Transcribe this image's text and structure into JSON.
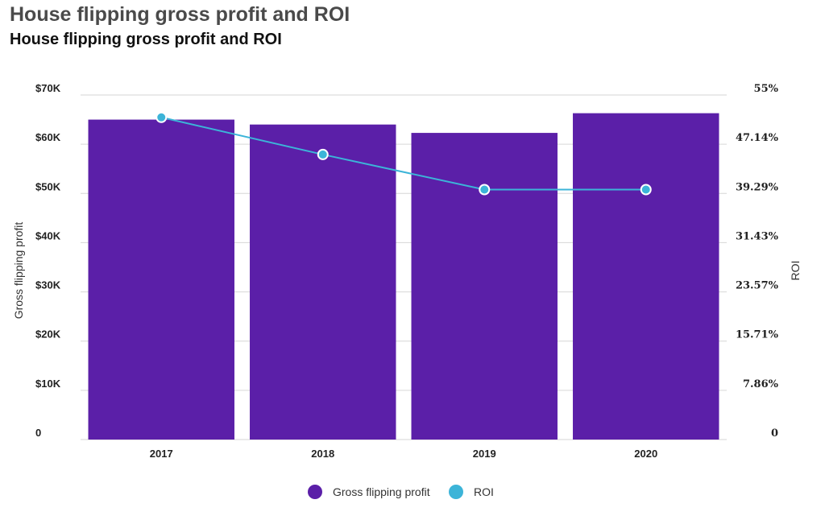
{
  "header": {
    "title": "House flipping gross profit and ROI",
    "subtitle": "House flipping gross profit and ROI"
  },
  "colors": {
    "bar": "#5b1fa8",
    "line": "#3cb4d8",
    "grid": "#d6d6d6"
  },
  "chart_data": {
    "type": "bar",
    "categories": [
      "2017",
      "2018",
      "2019",
      "2020"
    ],
    "series": [
      {
        "name": "Gross flipping profit",
        "type": "bar",
        "axis": "left",
        "values": [
          65000,
          64000,
          62300,
          66300
        ]
      },
      {
        "name": "ROI",
        "type": "line",
        "axis": "right",
        "values": [
          0.5143,
          0.455,
          0.399,
          0.399
        ]
      }
    ],
    "ylabel": "Gross flipping profit",
    "y2label": "ROI",
    "ylim": [
      0,
      70000
    ],
    "y2lim": [
      0,
      0.55
    ],
    "yticks": [
      "0",
      "$10K",
      "$20K",
      "$30K",
      "$40K",
      "$50K",
      "$60K",
      "$70K"
    ],
    "y2ticks": [
      "0",
      "7.86%",
      "15.71%",
      "23.57%",
      "31.43%",
      "39.29%",
      "47.14%",
      "55%"
    ],
    "grid": true,
    "legend": "bottom-center"
  }
}
